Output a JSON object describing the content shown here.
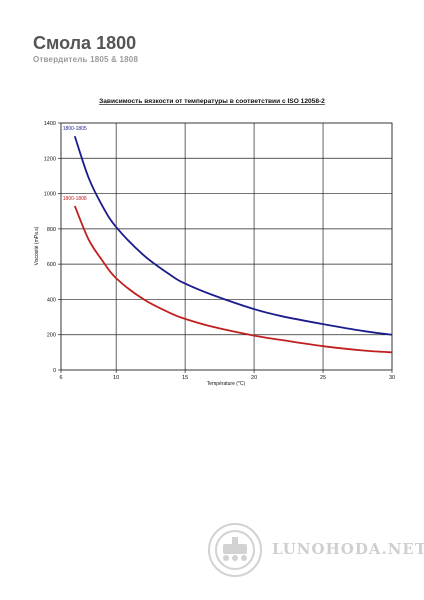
{
  "header": {
    "title": "Смола 1800",
    "subtitle": "Отвердитель 1805 & 1808"
  },
  "watermark": {
    "text": "LUNOHODA.NET",
    "icon": "rover-badge-icon"
  },
  "chart_data": {
    "type": "line",
    "title": "Зависимость вязкости от температуры в соответствии с ISO 12058-2",
    "xlabel": "Température (°C)",
    "ylabel": "Viscosité (mPa.s)",
    "xlim": [
      6,
      30
    ],
    "ylim": [
      0,
      1400
    ],
    "xticks": [
      6,
      10,
      15,
      20,
      25,
      30
    ],
    "yticks": [
      0,
      200,
      400,
      600,
      800,
      1000,
      1200,
      1400
    ],
    "grid": true,
    "series": [
      {
        "name": "1800-1805",
        "color": "#1c1c8c",
        "x": [
          7,
          8,
          9,
          10,
          12,
          14,
          15,
          17,
          20,
          22,
          25,
          28,
          30
        ],
        "y": [
          1325,
          1090,
          930,
          810,
          650,
          535,
          490,
          425,
          345,
          305,
          260,
          220,
          200
        ]
      },
      {
        "name": "1800-1808",
        "color": "#c02020",
        "x": [
          7,
          8,
          9,
          10,
          12,
          14,
          15,
          17,
          20,
          22,
          25,
          28,
          30
        ],
        "y": [
          930,
          740,
          620,
          520,
          400,
          320,
          290,
          245,
          195,
          170,
          135,
          110,
          100
        ]
      }
    ]
  }
}
